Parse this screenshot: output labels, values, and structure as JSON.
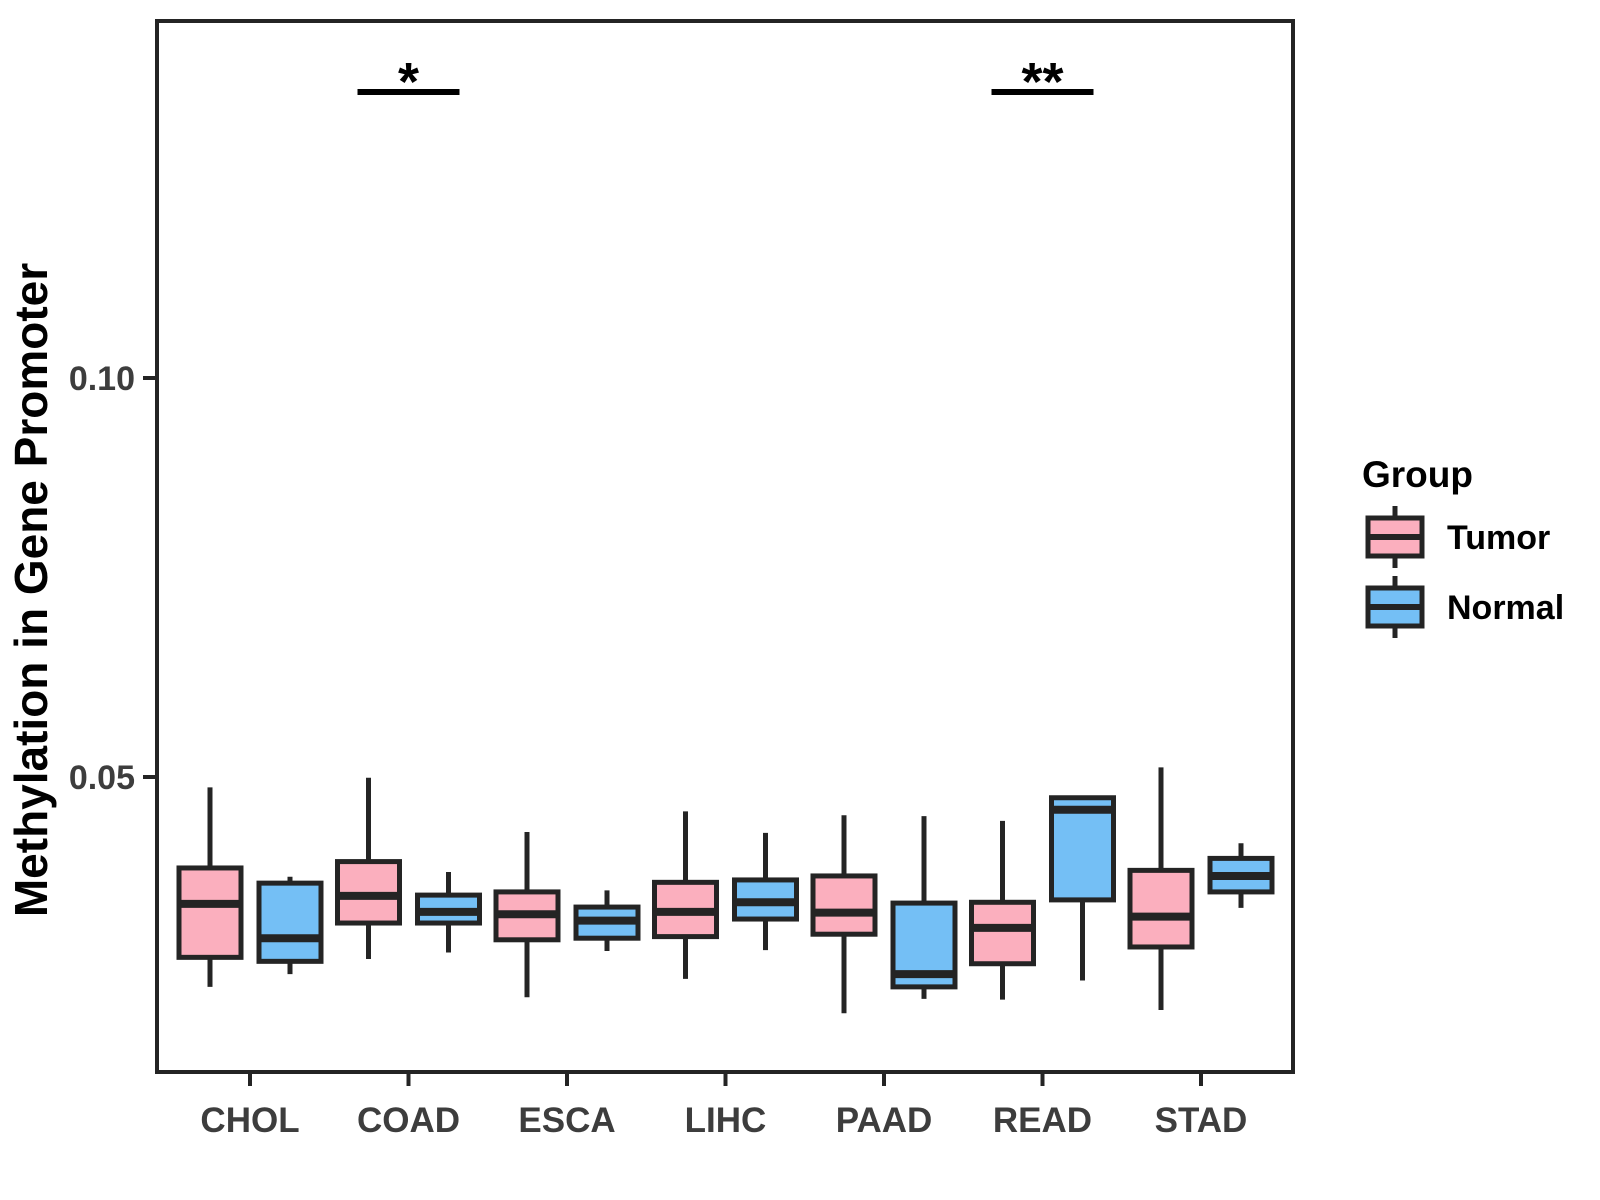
{
  "figure": {
    "background": "#ffffff",
    "stroke_color": "#242424",
    "axis_text_color": "#3d3d3d",
    "annotation_color": "#000000",
    "legend": {
      "title": "Group",
      "items": [
        {
          "label": "Tumor",
          "color": "#FBAFBE"
        },
        {
          "label": "Normal",
          "color": "#74BFF5"
        }
      ]
    }
  },
  "chart_data": {
    "type": "boxplot",
    "title": "",
    "xlabel": "",
    "ylabel": "Methylation in Gene Promoter",
    "categories": [
      "CHOL",
      "COAD",
      "ESCA",
      "LIHC",
      "PAAD",
      "READ",
      "STAD"
    ],
    "groups": [
      "Tumor",
      "Normal"
    ],
    "ylim": [
      0.013,
      0.145
    ],
    "grid": "off",
    "legend_position": "right",
    "y_ticks": [
      {
        "value": 0.05,
        "label": "0.05"
      },
      {
        "value": 0.1,
        "label": "0.10"
      }
    ],
    "series": [
      {
        "name": "Tumor",
        "color": "#FBAFBE",
        "boxes": [
          {
            "category": "CHOL",
            "whisker_low": 0.0237,
            "q1": 0.0274,
            "median": 0.0341,
            "q3": 0.0386,
            "whisker_high": 0.0487
          },
          {
            "category": "COAD",
            "whisker_low": 0.0272,
            "q1": 0.0317,
            "median": 0.0351,
            "q3": 0.0394,
            "whisker_high": 0.0499
          },
          {
            "category": "ESCA",
            "whisker_low": 0.0224,
            "q1": 0.0296,
            "median": 0.0328,
            "q3": 0.0356,
            "whisker_high": 0.0431
          },
          {
            "category": "LIHC",
            "whisker_low": 0.0247,
            "q1": 0.03,
            "median": 0.0331,
            "q3": 0.0368,
            "whisker_high": 0.0457
          },
          {
            "category": "PAAD",
            "whisker_low": 0.0204,
            "q1": 0.0303,
            "median": 0.033,
            "q3": 0.0376,
            "whisker_high": 0.0452
          },
          {
            "category": "READ",
            "whisker_low": 0.0221,
            "q1": 0.0266,
            "median": 0.0311,
            "q3": 0.0343,
            "whisker_high": 0.0445
          },
          {
            "category": "STAD",
            "whisker_low": 0.0208,
            "q1": 0.0287,
            "median": 0.0325,
            "q3": 0.0383,
            "whisker_high": 0.0512
          }
        ]
      },
      {
        "name": "Normal",
        "color": "#74BFF5",
        "boxes": [
          {
            "category": "CHOL",
            "whisker_low": 0.0253,
            "q1": 0.0269,
            "median": 0.0298,
            "q3": 0.0367,
            "whisker_high": 0.0375
          },
          {
            "category": "COAD",
            "whisker_low": 0.028,
            "q1": 0.0317,
            "median": 0.0331,
            "q3": 0.0352,
            "whisker_high": 0.0381
          },
          {
            "category": "ESCA",
            "whisker_low": 0.0282,
            "q1": 0.0298,
            "median": 0.032,
            "q3": 0.0337,
            "whisker_high": 0.0358
          },
          {
            "category": "LIHC",
            "whisker_low": 0.0283,
            "q1": 0.0322,
            "median": 0.0343,
            "q3": 0.0371,
            "whisker_high": 0.043
          },
          {
            "category": "PAAD",
            "whisker_low": 0.0222,
            "q1": 0.0237,
            "median": 0.0253,
            "q3": 0.0342,
            "whisker_high": 0.0451
          },
          {
            "category": "READ",
            "whisker_low": 0.0245,
            "q1": 0.0346,
            "median": 0.0459,
            "q3": 0.0474,
            "whisker_high": 0.0474
          },
          {
            "category": "STAD",
            "whisker_low": 0.0336,
            "q1": 0.0356,
            "median": 0.0376,
            "q3": 0.0398,
            "whisker_high": 0.0417
          }
        ]
      }
    ],
    "significance": [
      {
        "category": "COAD",
        "label": "*"
      },
      {
        "category": "READ",
        "label": "**"
      }
    ]
  }
}
